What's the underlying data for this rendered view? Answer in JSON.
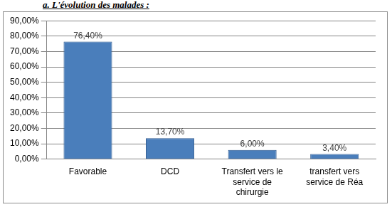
{
  "chart_data": {
    "type": "bar",
    "title": "a. L'évolution des malades :",
    "categories": [
      "Favorable",
      "DCD",
      "Transfert vers le service de chirurgie",
      "transfert vers service de Réa"
    ],
    "values": [
      76.4,
      13.7,
      6.0,
      3.4
    ],
    "value_labels": [
      "76,40%",
      "13,70%",
      "6,00%",
      "3,40%"
    ],
    "data_labels": true,
    "color": "#4a7ebb",
    "ylim": [
      0,
      90
    ],
    "yticks": [
      {
        "value": 0,
        "label": "0,00%"
      },
      {
        "value": 10,
        "label": "10,00%"
      },
      {
        "value": 20,
        "label": "20,00%"
      },
      {
        "value": 30,
        "label": "30,00%"
      },
      {
        "value": 40,
        "label": "40,00%"
      },
      {
        "value": 50,
        "label": "50,00%"
      },
      {
        "value": 60,
        "label": "60,00%"
      },
      {
        "value": 70,
        "label": "70,00%"
      },
      {
        "value": 80,
        "label": "80,00%"
      },
      {
        "value": 90,
        "label": "90,00%"
      }
    ],
    "grid": true,
    "tick_labels": true
  }
}
